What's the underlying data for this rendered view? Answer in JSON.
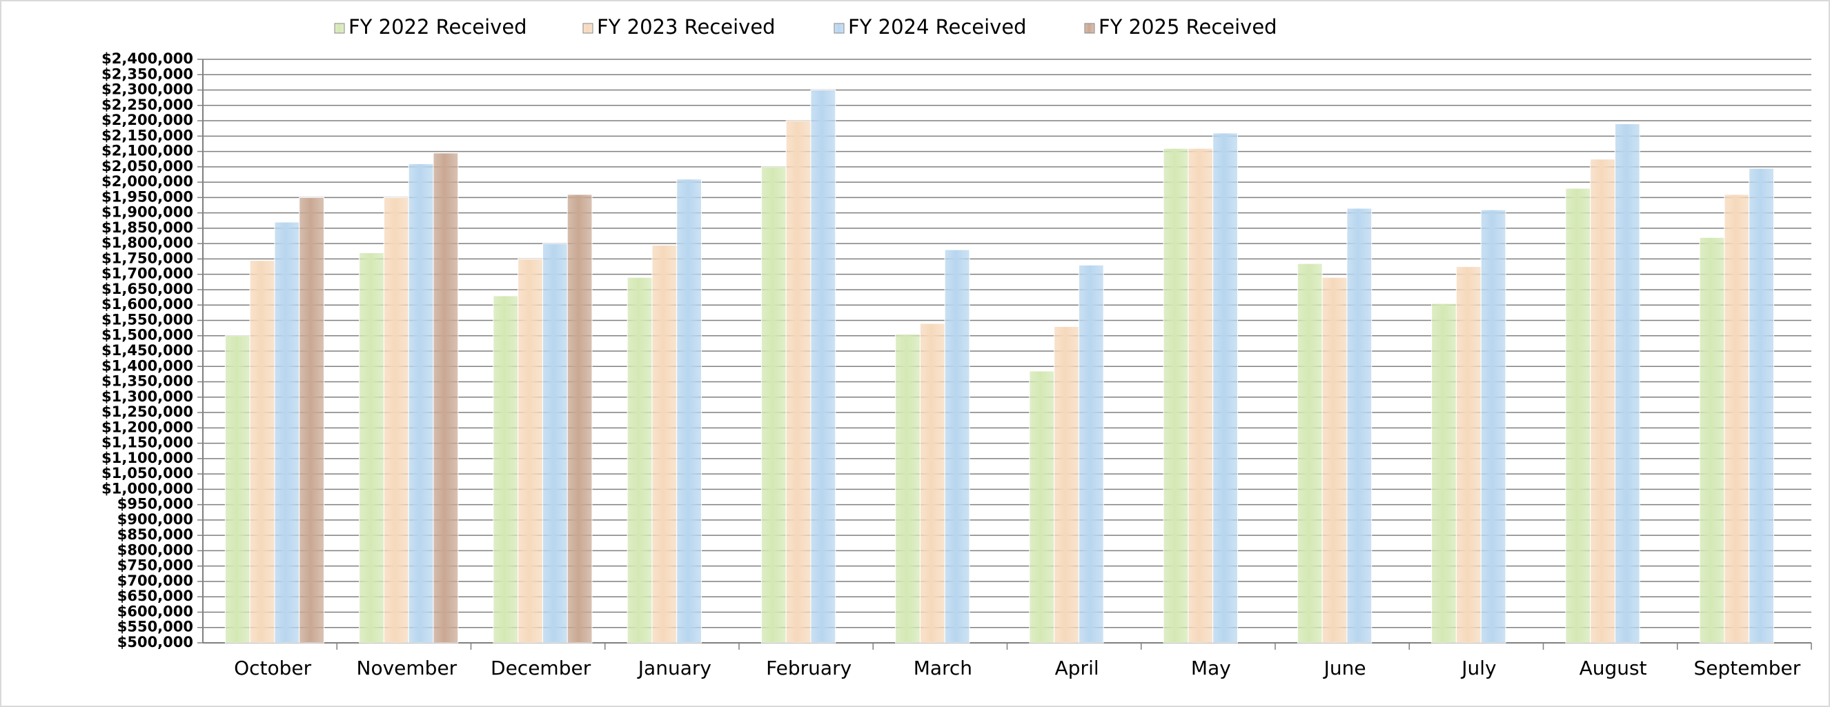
{
  "chart_data": {
    "type": "bar",
    "categories": [
      "October",
      "November",
      "December",
      "January",
      "February",
      "March",
      "April",
      "May",
      "June",
      "July",
      "August",
      "September"
    ],
    "series": [
      {
        "name": "FY 2022 Received",
        "color": "#d4e8b4",
        "values": [
          1500000,
          1770000,
          1630000,
          1690000,
          2050000,
          1505000,
          1385000,
          2110000,
          1735000,
          1605000,
          1980000,
          1820000
        ]
      },
      {
        "name": "FY 2023 Received",
        "color": "#f6d9bc",
        "values": [
          1745000,
          1950000,
          1750000,
          1795000,
          2200000,
          1540000,
          1530000,
          2110000,
          1690000,
          1725000,
          2075000,
          1960000
        ]
      },
      {
        "name": "FY 2024 Received",
        "color": "#b8d6ef",
        "values": [
          1870000,
          2060000,
          1800000,
          2010000,
          2300000,
          1780000,
          1730000,
          2160000,
          1915000,
          1910000,
          2190000,
          2045000
        ]
      },
      {
        "name": "FY 2025 Received",
        "color": "#c9a893",
        "values": [
          1950000,
          2095000,
          1960000,
          null,
          null,
          null,
          null,
          null,
          null,
          null,
          null,
          null
        ]
      }
    ],
    "ylim": [
      500000,
      2400000
    ],
    "yticks": [
      {
        "value": 500000,
        "label": "$500,000"
      },
      {
        "value": 550000,
        "label": "$550,000"
      },
      {
        "value": 600000,
        "label": "$600,000"
      },
      {
        "value": 650000,
        "label": "$650,000"
      },
      {
        "value": 700000,
        "label": "$700,000"
      },
      {
        "value": 750000,
        "label": "$750,000"
      },
      {
        "value": 800000,
        "label": "$800,000"
      },
      {
        "value": 850000,
        "label": "$850,000"
      },
      {
        "value": 900000,
        "label": "$900,000"
      },
      {
        "value": 950000,
        "label": "$950,000"
      },
      {
        "value": 1000000,
        "label": "$1,000,000"
      },
      {
        "value": 1050000,
        "label": "$1,050,000"
      },
      {
        "value": 1100000,
        "label": "$1,100,000"
      },
      {
        "value": 1150000,
        "label": "$1,150,000"
      },
      {
        "value": 1200000,
        "label": "$1,200,000"
      },
      {
        "value": 1250000,
        "label": "$1,250,000"
      },
      {
        "value": 1300000,
        "label": "$1,300,000"
      },
      {
        "value": 1350000,
        "label": "$1,350,000"
      },
      {
        "value": 1400000,
        "label": "$1,400,000"
      },
      {
        "value": 1450000,
        "label": "$1,450,000"
      },
      {
        "value": 1500000,
        "label": "$1,500,000"
      },
      {
        "value": 1550000,
        "label": "$1,550,000"
      },
      {
        "value": 1600000,
        "label": "$1,600,000"
      },
      {
        "value": 1650000,
        "label": "$1,650,000"
      },
      {
        "value": 1700000,
        "label": "$1,700,000"
      },
      {
        "value": 1750000,
        "label": "$1,750,000"
      },
      {
        "value": 1800000,
        "label": "$1,800,000"
      },
      {
        "value": 1850000,
        "label": "$1,850,000"
      },
      {
        "value": 1900000,
        "label": "$1,900,000"
      },
      {
        "value": 1950000,
        "label": "$1,950,000"
      },
      {
        "value": 2000000,
        "label": "$2,000,000"
      },
      {
        "value": 2050000,
        "label": "$2,050,000"
      },
      {
        "value": 2100000,
        "label": "$2,100,000"
      },
      {
        "value": 2150000,
        "label": "$2,150,000"
      },
      {
        "value": 2200000,
        "label": "$2,200,000"
      },
      {
        "value": 2250000,
        "label": "$2,250,000"
      },
      {
        "value": 2300000,
        "label": "$2,300,000"
      },
      {
        "value": 2350000,
        "label": "$2,350,000"
      },
      {
        "value": 2400000,
        "label": "$2,400,000"
      }
    ],
    "grid": true,
    "legend": "top"
  }
}
